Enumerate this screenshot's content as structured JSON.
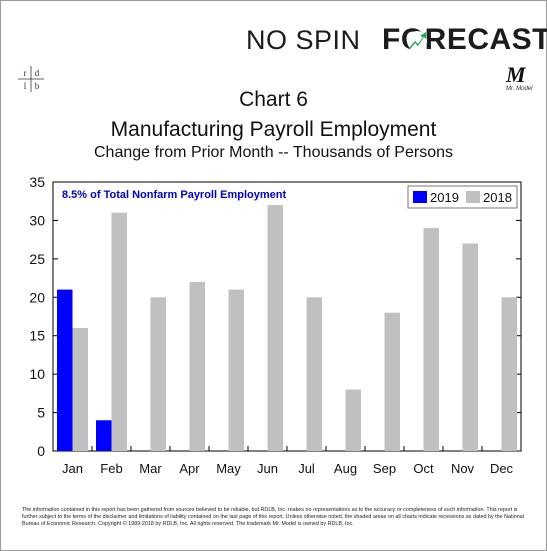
{
  "brand": {
    "no_spin": "NO SPIN",
    "forecast": "FORECAST",
    "accent_color": "#1aa64a"
  },
  "logos": {
    "rdlb": [
      "r",
      "d",
      "l",
      "b"
    ],
    "mr_model_letter": "M",
    "mr_model_text": "Mr. Model"
  },
  "chart_data": {
    "type": "bar",
    "title": "Chart 6",
    "subtitle": "Manufacturing Payroll Employment",
    "subtitle2": "Change from Prior Month -- Thousands of Persons",
    "annotation": "8.5% of Total Nonfarm Payroll Employment",
    "categories": [
      "Jan",
      "Feb",
      "Mar",
      "Apr",
      "May",
      "Jun",
      "Jul",
      "Aug",
      "Sep",
      "Oct",
      "Nov",
      "Dec"
    ],
    "series": [
      {
        "name": "2019",
        "color": "#0000ff",
        "values": [
          21,
          4,
          null,
          null,
          null,
          null,
          null,
          null,
          null,
          null,
          null,
          null
        ]
      },
      {
        "name": "2018",
        "color": "#c0c0c0",
        "values": [
          16,
          31,
          20,
          22,
          21,
          32,
          20,
          8,
          18,
          29,
          27,
          20
        ]
      }
    ],
    "ylim": [
      0,
      35
    ],
    "yticks": [
      0,
      5,
      10,
      15,
      20,
      25,
      30,
      35
    ],
    "grid": false,
    "legend": "top-right",
    "plot_background": "#ffffff"
  },
  "disclaimer": "The information contained in this report has been gathered from sources believed to be reliable, but RDLB, Inc. makes no representations as to the accuracy or completeness of such information. This report is further subject to the terms of the disclaimer and limitations of liability contained on the last page of this report. Unless otherwise noted, the shaded areas on all charts indicate recessions as dated by the National Bureau of Economic Research. Copyright © 1989-2018 by RDLB, Inc. All rights reserved. The trademark Mr. Model is owned by RDLB, Inc."
}
